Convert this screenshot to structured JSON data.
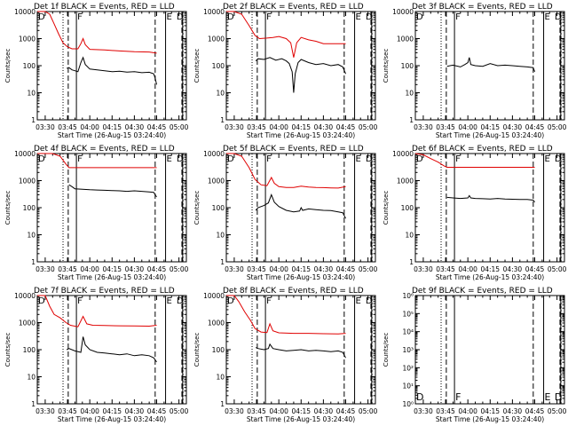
{
  "page": {
    "background": "#ffffff"
  },
  "colors": {
    "events": "#000000",
    "lld": "#e00000",
    "axis": "#000000"
  },
  "chart_data": [
    {
      "type": "line",
      "title": "Det 1f BLACK = Events, RED = LLD",
      "xlabel": "Start Time (26-Aug-15 03:24:40)",
      "ylabel": "Counts/sec",
      "x_ticks": [
        "03:30",
        "03:45",
        "04:00",
        "04:15",
        "04:30",
        "04:45",
        "05:00"
      ],
      "y_ticks": [
        "1",
        "10",
        "100",
        "1000",
        "10000"
      ],
      "ylim": [
        1,
        10000
      ],
      "yscale": "log",
      "markers": [
        {
          "label": "D",
          "x": "03:24:40"
        },
        {
          "label": "F",
          "x": "03:51:00"
        },
        {
          "label": "E",
          "x": "04:51:00"
        },
        {
          "label": "D",
          "x": "05:02:30"
        }
      ],
      "series": [
        {
          "name": "Events",
          "color": "#000000",
          "x": [
            "03:44:30",
            "03:46:00",
            "03:48:00",
            "03:50:00",
            "03:52:00",
            "03:54:00",
            "03:55:30",
            "03:57:00",
            "04:00:00",
            "04:05:00",
            "04:10:00",
            "04:15:00",
            "04:20:00",
            "04:25:00",
            "04:30:00",
            "04:35:00",
            "04:40:00",
            "04:43:00",
            "04:44:00",
            "04:45:00"
          ],
          "y": [
            80,
            85,
            70,
            65,
            60,
            130,
            200,
            110,
            75,
            70,
            65,
            60,
            62,
            58,
            60,
            55,
            57,
            50,
            35,
            20
          ]
        },
        {
          "name": "LLD",
          "color": "#e00000",
          "x": [
            "03:24:40",
            "03:30:00",
            "03:33:00",
            "03:36:00",
            "03:39:00",
            "03:42:00",
            "03:45:00",
            "03:48:00",
            "03:52:00",
            "03:54:00",
            "03:55:30",
            "03:57:00",
            "04:00:00",
            "04:10:00",
            "04:20:00",
            "04:30:00",
            "04:40:00",
            "04:45:00"
          ],
          "y": [
            10000,
            10000,
            8000,
            3500,
            1500,
            700,
            500,
            420,
            420,
            650,
            1000,
            600,
            400,
            380,
            350,
            330,
            320,
            290
          ]
        }
      ]
    },
    {
      "type": "line",
      "title": "Det 2f BLACK = Events, RED = LLD",
      "xlabel": "Start Time (26-Aug-15 03:24:40)",
      "ylabel": "Counts/sec",
      "x_ticks": [
        "03:30",
        "03:45",
        "04:00",
        "04:15",
        "04:30",
        "04:45",
        "05:00"
      ],
      "y_ticks": [
        "1",
        "10",
        "100",
        "1000",
        "10000"
      ],
      "ylim": [
        1,
        10000
      ],
      "yscale": "log",
      "markers": [
        {
          "label": "D",
          "x": "03:24:40"
        },
        {
          "label": "F",
          "x": "03:51:00"
        },
        {
          "label": "E",
          "x": "04:51:00"
        },
        {
          "label": "D",
          "x": "05:02:30"
        }
      ],
      "series": [
        {
          "name": "Events",
          "color": "#000000",
          "x": [
            "03:44:30",
            "03:46:00",
            "03:50:00",
            "03:54:00",
            "03:58:00",
            "04:02:00",
            "04:05:00",
            "04:07:00",
            "04:09:00",
            "04:10:00",
            "04:11:00",
            "04:13:00",
            "04:15:00",
            "04:20:00",
            "04:25:00",
            "04:30:00",
            "04:35:00",
            "04:40:00",
            "04:43:00",
            "04:45:00"
          ],
          "y": [
            150,
            180,
            170,
            200,
            160,
            180,
            150,
            120,
            60,
            10,
            50,
            130,
            170,
            130,
            110,
            120,
            100,
            110,
            90,
            50
          ]
        },
        {
          "name": "LLD",
          "color": "#e00000",
          "x": [
            "03:24:40",
            "03:30:00",
            "03:35:00",
            "03:40:00",
            "03:44:00",
            "03:47:00",
            "03:52:00",
            "03:56:00",
            "04:00:00",
            "04:05:00",
            "04:08:00",
            "04:10:00",
            "04:12:00",
            "04:15:00",
            "04:20:00",
            "04:25:00",
            "04:30:00",
            "04:35:00",
            "04:40:00",
            "04:45:00"
          ],
          "y": [
            10000,
            10000,
            8000,
            3000,
            1300,
            1000,
            1050,
            1100,
            1200,
            1000,
            700,
            200,
            700,
            1100,
            900,
            800,
            650,
            650,
            650,
            650
          ]
        }
      ]
    },
    {
      "type": "line",
      "title": "Det 3f BLACK = Events, RED = LLD",
      "xlabel": "Start Time (26-Aug-15 03:24:40)",
      "ylabel": "Counts/sec",
      "x_ticks": [
        "03:30",
        "03:45",
        "04:00",
        "04:15",
        "04:30",
        "04:45",
        "05:00"
      ],
      "y_ticks": [
        "1",
        "10",
        "100",
        "1000",
        "10000"
      ],
      "ylim": [
        1,
        10000
      ],
      "yscale": "log",
      "markers": [
        {
          "label": "D",
          "x": "03:24:40"
        },
        {
          "label": "F",
          "x": "03:51:00"
        },
        {
          "label": "E",
          "x": "04:51:00"
        },
        {
          "label": "D",
          "x": "05:02:30"
        }
      ],
      "series": [
        {
          "name": "Events",
          "color": "#000000",
          "x": [
            "03:46:00",
            "03:50:00",
            "03:55:00",
            "03:58:00",
            "04:00:00",
            "04:01:00",
            "04:02:00",
            "04:05:00",
            "04:10:00",
            "04:15:00",
            "04:20:00",
            "04:25:00",
            "04:30:00",
            "04:35:00",
            "04:40:00",
            "04:44:00",
            "04:45:00"
          ],
          "y": [
            95,
            105,
            90,
            110,
            130,
            200,
            110,
            100,
            95,
            120,
            100,
            105,
            100,
            95,
            90,
            85,
            60
          ]
        }
      ]
    },
    {
      "type": "line",
      "title": "Det 4f BLACK = Events, RED = LLD",
      "xlabel": "Start Time (26-Aug-15 03:24:40)",
      "ylabel": "Counts/sec",
      "x_ticks": [
        "03:30",
        "03:45",
        "04:00",
        "04:15",
        "04:30",
        "04:45",
        "05:00"
      ],
      "y_ticks": [
        "1",
        "10",
        "100",
        "1000",
        "10000"
      ],
      "ylim": [
        1,
        10000
      ],
      "yscale": "log",
      "markers": [
        {
          "label": "D",
          "x": "03:24:40"
        },
        {
          "label": "F",
          "x": "03:51:00"
        },
        {
          "label": "E",
          "x": "04:51:00"
        },
        {
          "label": "D",
          "x": "05:02:30"
        }
      ],
      "series": [
        {
          "name": "Events",
          "color": "#000000",
          "x": [
            "03:46:00",
            "03:48:00",
            "03:50:00",
            "03:55:00",
            "04:00:00",
            "04:05:00",
            "04:10:00",
            "04:15:00",
            "04:20:00",
            "04:25:00",
            "04:30:00",
            "04:35:00",
            "04:40:00",
            "04:43:00",
            "04:44:00",
            "04:45:00"
          ],
          "y": [
            700,
            600,
            500,
            480,
            460,
            450,
            440,
            430,
            420,
            400,
            420,
            400,
            380,
            370,
            300,
            250
          ]
        },
        {
          "name": "LLD",
          "color": "#e00000",
          "x": [
            "03:24:40",
            "03:35:00",
            "03:40:00",
            "03:44:00",
            "03:46:00",
            "04:45:00"
          ],
          "y": [
            10000,
            10000,
            8000,
            4000,
            3000,
            3000
          ]
        }
      ]
    },
    {
      "type": "line",
      "title": "Det 5f BLACK = Events, RED = LLD",
      "xlabel": "Start Time (26-Aug-15 03:24:40)",
      "ylabel": "Counts/sec",
      "x_ticks": [
        "03:30",
        "03:45",
        "04:00",
        "04:15",
        "04:30",
        "04:45",
        "05:00"
      ],
      "y_ticks": [
        "1",
        "10",
        "100",
        "1000",
        "10000"
      ],
      "ylim": [
        1,
        10000
      ],
      "yscale": "log",
      "markers": [
        {
          "label": "D",
          "x": "03:24:40"
        },
        {
          "label": "F",
          "x": "03:51:00"
        },
        {
          "label": "E",
          "x": "04:51:00"
        },
        {
          "label": "D",
          "x": "05:02:30"
        }
      ],
      "series": [
        {
          "name": "Events",
          "color": "#000000",
          "x": [
            "03:44:30",
            "03:46:00",
            "03:50:00",
            "03:53:00",
            "03:55:00",
            "03:57:00",
            "04:00:00",
            "04:05:00",
            "04:10:00",
            "04:14:00",
            "04:15:00",
            "04:16:00",
            "04:20:00",
            "04:25:00",
            "04:30:00",
            "04:35:00",
            "04:40:00",
            "04:43:00",
            "04:45:00"
          ],
          "y": [
            80,
            100,
            120,
            150,
            300,
            160,
            110,
            80,
            70,
            75,
            100,
            80,
            90,
            85,
            80,
            78,
            70,
            65,
            40
          ]
        },
        {
          "name": "LLD",
          "color": "#e00000",
          "x": [
            "03:24:40",
            "03:30:00",
            "03:35:00",
            "03:40:00",
            "03:44:00",
            "03:48:00",
            "03:52:00",
            "03:55:00",
            "03:57:00",
            "04:00:00",
            "04:05:00",
            "04:10:00",
            "04:15:00",
            "04:20:00",
            "04:25:00",
            "04:30:00",
            "04:35:00",
            "04:40:00",
            "04:45:00"
          ],
          "y": [
            10000,
            10000,
            8000,
            3000,
            1100,
            700,
            650,
            1300,
            800,
            600,
            560,
            560,
            620,
            580,
            560,
            550,
            540,
            530,
            600
          ]
        }
      ]
    },
    {
      "type": "line",
      "title": "Det 6f BLACK = Events, RED = LLD",
      "xlabel": "Start Time (26-Aug-15 03:24:40)",
      "ylabel": "Counts/sec",
      "x_ticks": [
        "03:30",
        "03:45",
        "04:00",
        "04:15",
        "04:30",
        "04:45",
        "05:00"
      ],
      "y_ticks": [
        "1",
        "10",
        "100",
        "1000",
        "10000"
      ],
      "ylim": [
        1,
        10000
      ],
      "yscale": "log",
      "markers": [
        {
          "label": "D",
          "x": "03:24:40"
        },
        {
          "label": "F",
          "x": "03:51:00"
        },
        {
          "label": "E",
          "x": "04:51:00"
        },
        {
          "label": "D",
          "x": "05:02:30"
        }
      ],
      "series": [
        {
          "name": "Events",
          "color": "#000000",
          "x": [
            "03:46:00",
            "03:50:00",
            "03:55:00",
            "04:00:00",
            "04:01:00",
            "04:02:00",
            "04:05:00",
            "04:10:00",
            "04:15:00",
            "04:20:00",
            "04:25:00",
            "04:30:00",
            "04:35:00",
            "04:40:00",
            "04:44:00",
            "04:45:00"
          ],
          "y": [
            240,
            230,
            220,
            230,
            280,
            230,
            220,
            215,
            210,
            220,
            210,
            205,
            200,
            200,
            190,
            160
          ]
        },
        {
          "name": "LLD",
          "color": "#e00000",
          "x": [
            "03:24:40",
            "03:30:00",
            "03:35:00",
            "03:40:00",
            "03:44:00",
            "03:46:00",
            "04:45:00"
          ],
          "y": [
            10000,
            9000,
            6500,
            4800,
            3500,
            3100,
            3100
          ]
        }
      ]
    },
    {
      "type": "line",
      "title": "Det 7f BLACK = Events, RED = LLD",
      "xlabel": "Start Time (26-Aug-15 03:24:40)",
      "ylabel": "Counts/sec",
      "x_ticks": [
        "03:30",
        "03:45",
        "04:00",
        "04:15",
        "04:30",
        "04:45",
        "05:00"
      ],
      "y_ticks": [
        "1",
        "10",
        "100",
        "1000",
        "10000"
      ],
      "ylim": [
        1,
        10000
      ],
      "yscale": "log",
      "markers": [
        {
          "label": "D",
          "x": "03:24:40"
        },
        {
          "label": "F",
          "x": "03:51:00"
        },
        {
          "label": "E",
          "x": "04:51:00"
        },
        {
          "label": "D",
          "x": "05:02:30"
        }
      ],
      "series": [
        {
          "name": "Events",
          "color": "#000000",
          "x": [
            "03:44:30",
            "03:46:00",
            "03:50:00",
            "03:54:00",
            "03:55:30",
            "03:57:00",
            "04:00:00",
            "04:05:00",
            "04:10:00",
            "04:15:00",
            "04:20:00",
            "04:25:00",
            "04:30:00",
            "04:35:00",
            "04:40:00",
            "04:43:00",
            "04:45:00"
          ],
          "y": [
            100,
            110,
            90,
            80,
            300,
            150,
            100,
            80,
            75,
            70,
            65,
            70,
            60,
            65,
            60,
            50,
            35
          ]
        },
        {
          "name": "LLD",
          "color": "#e00000",
          "x": [
            "03:24:40",
            "03:30:00",
            "03:33:00",
            "03:36:00",
            "03:40:00",
            "03:44:00",
            "03:47:00",
            "03:52:00",
            "03:55:30",
            "03:58:00",
            "04:02:00",
            "04:10:00",
            "04:20:00",
            "04:30:00",
            "04:40:00",
            "04:45:00"
          ],
          "y": [
            10000,
            10000,
            4000,
            2000,
            1500,
            1000,
            800,
            700,
            1700,
            900,
            800,
            780,
            760,
            750,
            740,
            800
          ]
        }
      ]
    },
    {
      "type": "line",
      "title": "Det 8f BLACK = Events, RED = LLD",
      "xlabel": "Start Time (26-Aug-15 03:24:40)",
      "ylabel": "Counts/sec",
      "x_ticks": [
        "03:30",
        "03:45",
        "04:00",
        "04:15",
        "04:30",
        "04:45",
        "05:00"
      ],
      "y_ticks": [
        "1",
        "10",
        "100",
        "1000",
        "10000"
      ],
      "ylim": [
        1,
        10000
      ],
      "yscale": "log",
      "markers": [
        {
          "label": "D",
          "x": "03:24:40"
        },
        {
          "label": "F",
          "x": "03:51:00"
        },
        {
          "label": "E",
          "x": "04:51:00"
        },
        {
          "label": "D",
          "x": "05:02:30"
        }
      ],
      "series": [
        {
          "name": "Events",
          "color": "#000000",
          "x": [
            "03:44:30",
            "03:46:00",
            "03:50:00",
            "03:53:00",
            "03:54:00",
            "03:56:00",
            "04:00:00",
            "04:05:00",
            "04:10:00",
            "04:15:00",
            "04:20:00",
            "04:25:00",
            "04:30:00",
            "04:35:00",
            "04:40:00",
            "04:43:00",
            "04:45:00"
          ],
          "y": [
            120,
            110,
            100,
            110,
            160,
            110,
            100,
            90,
            95,
            100,
            90,
            95,
            90,
            85,
            90,
            80,
            50
          ]
        },
        {
          "name": "LLD",
          "color": "#e00000",
          "x": [
            "03:24:40",
            "03:30:00",
            "03:33:00",
            "03:37:00",
            "03:41:00",
            "03:44:00",
            "03:48:00",
            "03:52:00",
            "03:54:00",
            "03:56:00",
            "04:00:00",
            "04:10:00",
            "04:20:00",
            "04:30:00",
            "04:40:00",
            "04:45:00"
          ],
          "y": [
            10000,
            10000,
            6000,
            2500,
            1200,
            600,
            450,
            430,
            900,
            500,
            420,
            400,
            400,
            390,
            380,
            400
          ]
        }
      ]
    },
    {
      "type": "line",
      "title": "Det 9f BLACK = Events, RED = LLD",
      "xlabel": "Start Time (26-Aug-15 03:24:40)",
      "ylabel": "Counts/sec",
      "x_ticks": [
        "03:30",
        "03:45",
        "04:00",
        "04:15",
        "04:30",
        "04:45",
        "05:00"
      ],
      "y_ticks": [
        "10⁰",
        "10¹",
        "10²",
        "10³",
        "10⁴",
        "10⁵",
        "10⁶"
      ],
      "ylim": [
        1,
        1000000
      ],
      "yscale": "log",
      "markers": [
        {
          "label": "D",
          "x": "03:24:40"
        },
        {
          "label": "F",
          "x": "03:51:00"
        },
        {
          "label": "E",
          "x": "04:51:00"
        },
        {
          "label": "D",
          "x": "05:02:30"
        }
      ],
      "series": []
    }
  ]
}
